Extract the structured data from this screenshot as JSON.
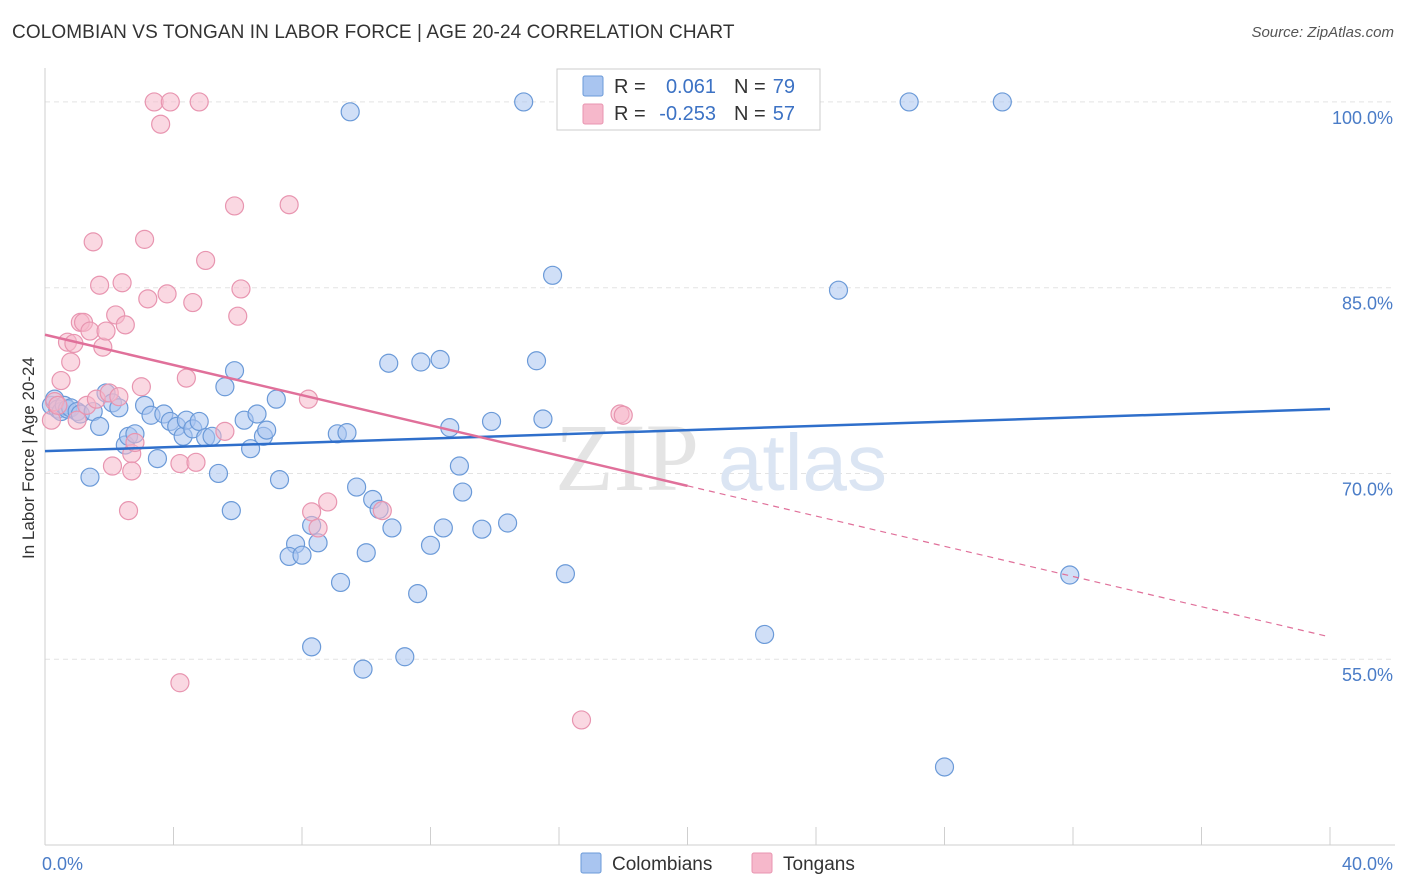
{
  "header": {
    "title": "COLOMBIAN VS TONGAN IN LABOR FORCE | AGE 20-24 CORRELATION CHART",
    "source": "Source: ZipAtlas.com"
  },
  "watermark": {
    "zip": "ZIP",
    "atlas": "atlas"
  },
  "legend": {
    "r_label": "R =",
    "n_label": "N =",
    "rows": [
      {
        "series": "Colombians",
        "r": "0.061",
        "n": "79"
      },
      {
        "series": "Tongans",
        "r": "-0.253",
        "n": "57"
      }
    ]
  },
  "chart_data": {
    "type": "scatter",
    "title": "COLOMBIAN VS TONGAN IN LABOR FORCE | AGE 20-24 CORRELATION CHART",
    "xlabel": "",
    "ylabel": "In Labor Force | Age 20-24",
    "xlim": [
      0,
      40
    ],
    "ylim": [
      40,
      105
    ],
    "x_ticks": [
      {
        "value": 0,
        "label": "0.0%"
      },
      {
        "value": 40,
        "label": "40.0%"
      }
    ],
    "y_ticks": [
      {
        "value": 55,
        "label": "55.0%"
      },
      {
        "value": 70,
        "label": "70.0%"
      },
      {
        "value": 85,
        "label": "85.0%"
      },
      {
        "value": 100,
        "label": "100.0%"
      }
    ],
    "grid": true,
    "legend_position": "top-center",
    "colors": {
      "Colombians": {
        "fill": "#a9c5f0",
        "stroke": "#6b9ad8",
        "line": "#2f6fcb"
      },
      "Tongans": {
        "fill": "#f6b8cb",
        "stroke": "#e895b0",
        "line": "#e0709a"
      }
    },
    "series": [
      {
        "name": "Colombians",
        "trendline": {
          "x": [
            0,
            40
          ],
          "y": [
            71.8,
            75.2
          ]
        },
        "points": [
          [
            0.2,
            75.5
          ],
          [
            0.3,
            76.0
          ],
          [
            0.4,
            75.2
          ],
          [
            0.5,
            75.0
          ],
          [
            0.6,
            75.5
          ],
          [
            0.7,
            75.2
          ],
          [
            0.8,
            75.3
          ],
          [
            1.0,
            75.0
          ],
          [
            1.1,
            74.8
          ],
          [
            1.4,
            69.7
          ],
          [
            1.5,
            75.0
          ],
          [
            1.7,
            73.8
          ],
          [
            1.9,
            76.5
          ],
          [
            2.1,
            75.7
          ],
          [
            2.3,
            75.3
          ],
          [
            2.5,
            72.3
          ],
          [
            2.6,
            73.0
          ],
          [
            2.8,
            73.2
          ],
          [
            3.1,
            75.5
          ],
          [
            3.3,
            74.7
          ],
          [
            3.5,
            71.2
          ],
          [
            3.7,
            74.8
          ],
          [
            3.9,
            74.2
          ],
          [
            4.1,
            73.8
          ],
          [
            4.3,
            73.0
          ],
          [
            4.4,
            74.3
          ],
          [
            4.6,
            73.6
          ],
          [
            4.8,
            74.2
          ],
          [
            5.0,
            72.9
          ],
          [
            5.2,
            73.0
          ],
          [
            5.4,
            70.0
          ],
          [
            5.6,
            77.0
          ],
          [
            5.8,
            67.0
          ],
          [
            5.9,
            78.3
          ],
          [
            6.2,
            74.3
          ],
          [
            6.4,
            72.0
          ],
          [
            6.6,
            74.8
          ],
          [
            6.8,
            73.0
          ],
          [
            6.9,
            73.5
          ],
          [
            7.2,
            76.0
          ],
          [
            7.3,
            69.5
          ],
          [
            7.8,
            64.3
          ],
          [
            7.6,
            63.3
          ],
          [
            8.0,
            63.4
          ],
          [
            8.3,
            65.8
          ],
          [
            8.3,
            56.0
          ],
          [
            8.5,
            64.4
          ],
          [
            9.1,
            73.2
          ],
          [
            9.2,
            61.2
          ],
          [
            9.4,
            73.3
          ],
          [
            9.5,
            99.2
          ],
          [
            9.7,
            68.9
          ],
          [
            9.9,
            54.2
          ],
          [
            10.0,
            63.6
          ],
          [
            10.2,
            67.9
          ],
          [
            10.4,
            67.1
          ],
          [
            10.7,
            78.9
          ],
          [
            10.8,
            65.6
          ],
          [
            11.2,
            55.2
          ],
          [
            11.6,
            60.3
          ],
          [
            11.7,
            79.0
          ],
          [
            12.0,
            64.2
          ],
          [
            12.3,
            79.2
          ],
          [
            12.4,
            65.6
          ],
          [
            12.6,
            73.7
          ],
          [
            12.9,
            70.6
          ],
          [
            13.0,
            68.5
          ],
          [
            13.6,
            65.5
          ],
          [
            13.9,
            74.2
          ],
          [
            14.4,
            66.0
          ],
          [
            14.9,
            100.0
          ],
          [
            15.3,
            79.1
          ],
          [
            15.5,
            74.4
          ],
          [
            15.8,
            86.0
          ],
          [
            16.2,
            61.9
          ],
          [
            18.0,
            100.0
          ],
          [
            22.4,
            57.0
          ],
          [
            24.7,
            84.8
          ],
          [
            26.9,
            100.0
          ],
          [
            28.0,
            46.3
          ],
          [
            29.8,
            100.0
          ],
          [
            31.9,
            61.8
          ]
        ]
      },
      {
        "name": "Tongans",
        "trendline": {
          "x": [
            0,
            20
          ],
          "y": [
            81.2,
            69.0
          ],
          "dashed_extension": {
            "x": [
              20,
              40
            ],
            "y": [
              69.0,
              56.8
            ]
          }
        },
        "points": [
          [
            0.2,
            74.3
          ],
          [
            0.3,
            75.8
          ],
          [
            0.4,
            75.5
          ],
          [
            0.5,
            77.5
          ],
          [
            0.7,
            80.6
          ],
          [
            0.8,
            79.0
          ],
          [
            0.9,
            80.5
          ],
          [
            1.0,
            74.3
          ],
          [
            1.1,
            82.2
          ],
          [
            1.2,
            82.2
          ],
          [
            1.3,
            75.5
          ],
          [
            1.4,
            81.5
          ],
          [
            1.5,
            88.7
          ],
          [
            1.6,
            76.0
          ],
          [
            1.7,
            85.2
          ],
          [
            1.8,
            80.2
          ],
          [
            1.9,
            81.5
          ],
          [
            2.0,
            76.5
          ],
          [
            2.1,
            70.6
          ],
          [
            2.2,
            82.8
          ],
          [
            2.3,
            76.2
          ],
          [
            2.4,
            85.4
          ],
          [
            2.5,
            82.0
          ],
          [
            2.6,
            67.0
          ],
          [
            2.7,
            71.6
          ],
          [
            2.7,
            70.2
          ],
          [
            2.8,
            72.5
          ],
          [
            3.0,
            77.0
          ],
          [
            3.1,
            88.9
          ],
          [
            3.2,
            84.1
          ],
          [
            3.4,
            100.0
          ],
          [
            3.6,
            98.2
          ],
          [
            3.8,
            84.5
          ],
          [
            3.9,
            100.0
          ],
          [
            4.2,
            70.8
          ],
          [
            4.2,
            53.1
          ],
          [
            4.4,
            77.7
          ],
          [
            4.6,
            83.8
          ],
          [
            4.8,
            100.0
          ],
          [
            4.7,
            70.9
          ],
          [
            5.0,
            87.2
          ],
          [
            5.6,
            73.4
          ],
          [
            5.9,
            91.6
          ],
          [
            6.0,
            82.7
          ],
          [
            6.1,
            84.9
          ],
          [
            7.6,
            91.7
          ],
          [
            8.2,
            76.0
          ],
          [
            8.3,
            66.9
          ],
          [
            8.5,
            65.6
          ],
          [
            8.8,
            67.7
          ],
          [
            10.5,
            67.0
          ],
          [
            16.7,
            50.1
          ],
          [
            17.9,
            74.8
          ],
          [
            18.0,
            74.7
          ]
        ]
      }
    ]
  }
}
